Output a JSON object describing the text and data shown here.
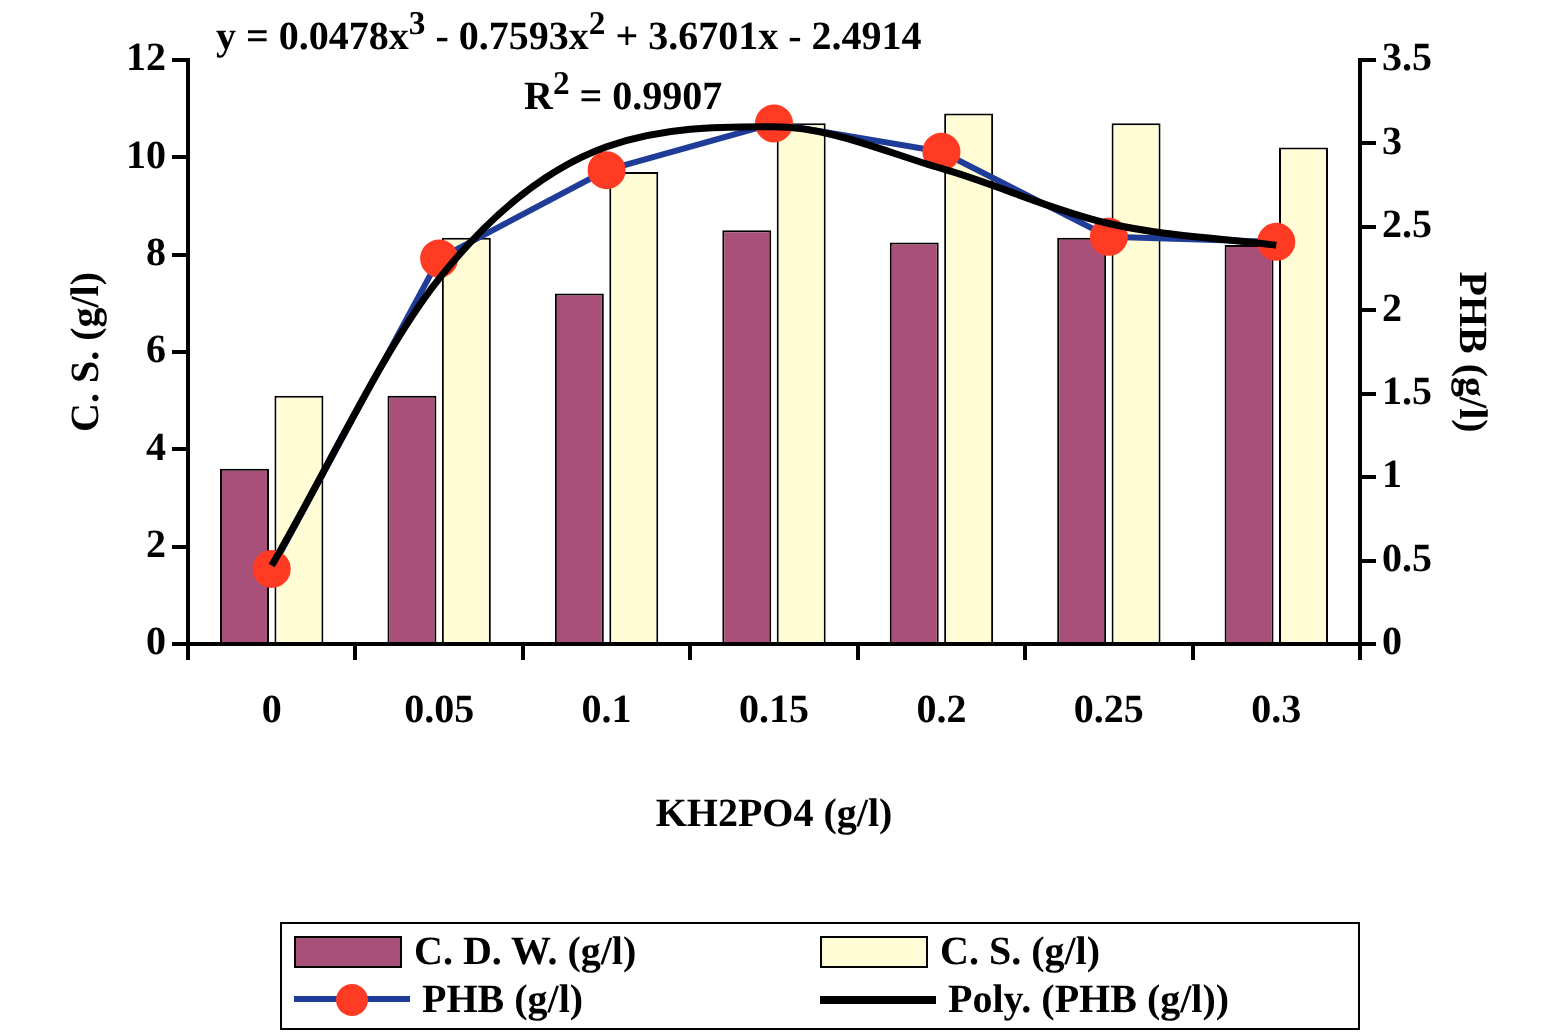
{
  "chart_data": {
    "type": "bar",
    "xlabel": "KH2PO4 (g/l)",
    "ylabel": "C. S. (g/l)",
    "y2label": "PHB (g/l)",
    "categories": [
      "0",
      "0.05",
      "0.1",
      "0.15",
      "0.2",
      "0.25",
      "0.3"
    ],
    "series": [
      {
        "name": "C. D. W. (g/l)",
        "color": "#a8507a",
        "values": [
          3.6,
          5.1,
          7.2,
          8.5,
          8.25,
          8.35,
          8.2
        ]
      },
      {
        "name": "C. S. (g/l)",
        "color": "#fffcd6",
        "values": [
          5.1,
          8.35,
          9.7,
          10.7,
          10.9,
          10.7,
          10.2
        ]
      },
      {
        "name": "PHB (g/l)",
        "type": "line",
        "axis": "y2",
        "color": "#1f3c99",
        "marker": "circle",
        "values": [
          0.45,
          2.31,
          2.84,
          3.12,
          2.95,
          2.44,
          2.41
        ]
      },
      {
        "name": "Poly. (PHB (g/l))",
        "type": "line",
        "axis": "y2",
        "color": "#000000",
        "marker": "none",
        "line_style": "solid",
        "values": [
          0.47,
          2.19,
          2.98,
          3.1,
          2.85,
          2.52,
          2.39
        ]
      }
    ],
    "ylim": [
      0,
      12
    ],
    "yticks": [
      0,
      2,
      4,
      6,
      8,
      10,
      12
    ],
    "y2lim": [
      0,
      3.5
    ],
    "y2ticks": [
      0,
      0.5,
      1,
      1.5,
      2,
      2.5,
      3,
      3.5
    ],
    "grid": false,
    "legend": "bottom",
    "annotations": [
      "y = 0.0478x$^{3}$ - 0.7593x$^{2}$ + 3.6701x - 2.4914",
      "R$^{2}$ = 0.9907"
    ]
  }
}
